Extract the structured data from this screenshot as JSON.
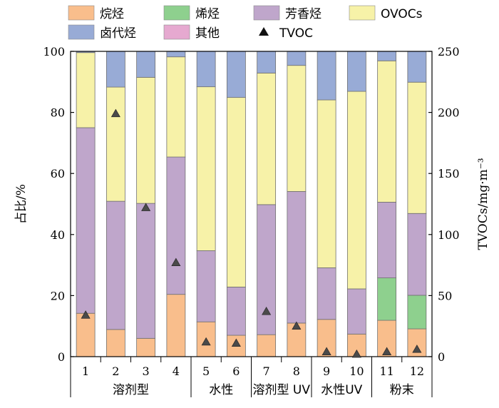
{
  "chart_data": {
    "type": "bar",
    "stacked": true,
    "categories": [
      "1",
      "2",
      "3",
      "4",
      "5",
      "6",
      "7",
      "8",
      "9",
      "10",
      "11",
      "12"
    ],
    "groups": [
      {
        "label": "溶剂型",
        "categories": [
          "1",
          "2",
          "3",
          "4"
        ]
      },
      {
        "label": "水性",
        "categories": [
          "5",
          "6"
        ]
      },
      {
        "label": "溶剂型 UV",
        "categories": [
          "7",
          "8"
        ]
      },
      {
        "label": "水性UV",
        "categories": [
          "9",
          "10"
        ]
      },
      {
        "label": "粉末",
        "categories": [
          "11",
          "12"
        ]
      }
    ],
    "series": [
      {
        "name": "烷烃",
        "color": "#f9be8c",
        "values": [
          14.2,
          8.9,
          6.0,
          20.4,
          11.4,
          7.0,
          7.2,
          11.0,
          12.2,
          7.4,
          11.9,
          9.1
        ]
      },
      {
        "name": "烯烃",
        "color": "#8ed08e",
        "values": [
          0,
          0,
          0,
          0,
          0,
          0,
          0,
          0,
          0,
          0,
          13.9,
          11.0
        ]
      },
      {
        "name": "芳香烃",
        "color": "#bfa6cb",
        "values": [
          60.8,
          42.0,
          44.2,
          45.0,
          23.3,
          15.8,
          42.6,
          43.1,
          16.9,
          14.8,
          24.8,
          26.8
        ]
      },
      {
        "name": "OVOCs",
        "color": "#f7f2a8",
        "values": [
          24.6,
          37.4,
          41.3,
          32.8,
          53.7,
          62.1,
          43.1,
          41.3,
          55.0,
          64.7,
          46.3,
          43.0
        ]
      },
      {
        "name": "卤代烃",
        "color": "#98abd6",
        "values": [
          0.4,
          11.7,
          8.5,
          1.8,
          11.6,
          15.1,
          7.1,
          4.6,
          15.9,
          13.1,
          3.1,
          10.1
        ]
      },
      {
        "name": "其他",
        "color": "#e6a9d0",
        "values": [
          0,
          0,
          0,
          0,
          0,
          0,
          0,
          0,
          0,
          0,
          0,
          0
        ]
      }
    ],
    "tvoc": {
      "name": "TVOC",
      "values": [
        34,
        199,
        122,
        77,
        12,
        11,
        37,
        25,
        4,
        2,
        4,
        6
      ]
    },
    "ylabel": "占比/%",
    "ylim": [
      0,
      100
    ],
    "yticks": [
      "0",
      "20",
      "40",
      "60",
      "80",
      "100"
    ],
    "y2label": "TVOCs/mg·m⁻³",
    "y2lim": [
      0,
      250
    ],
    "y2ticks": [
      "0",
      "50",
      "100",
      "150",
      "200",
      "250"
    ],
    "grid": false,
    "legend_placement": "top"
  }
}
